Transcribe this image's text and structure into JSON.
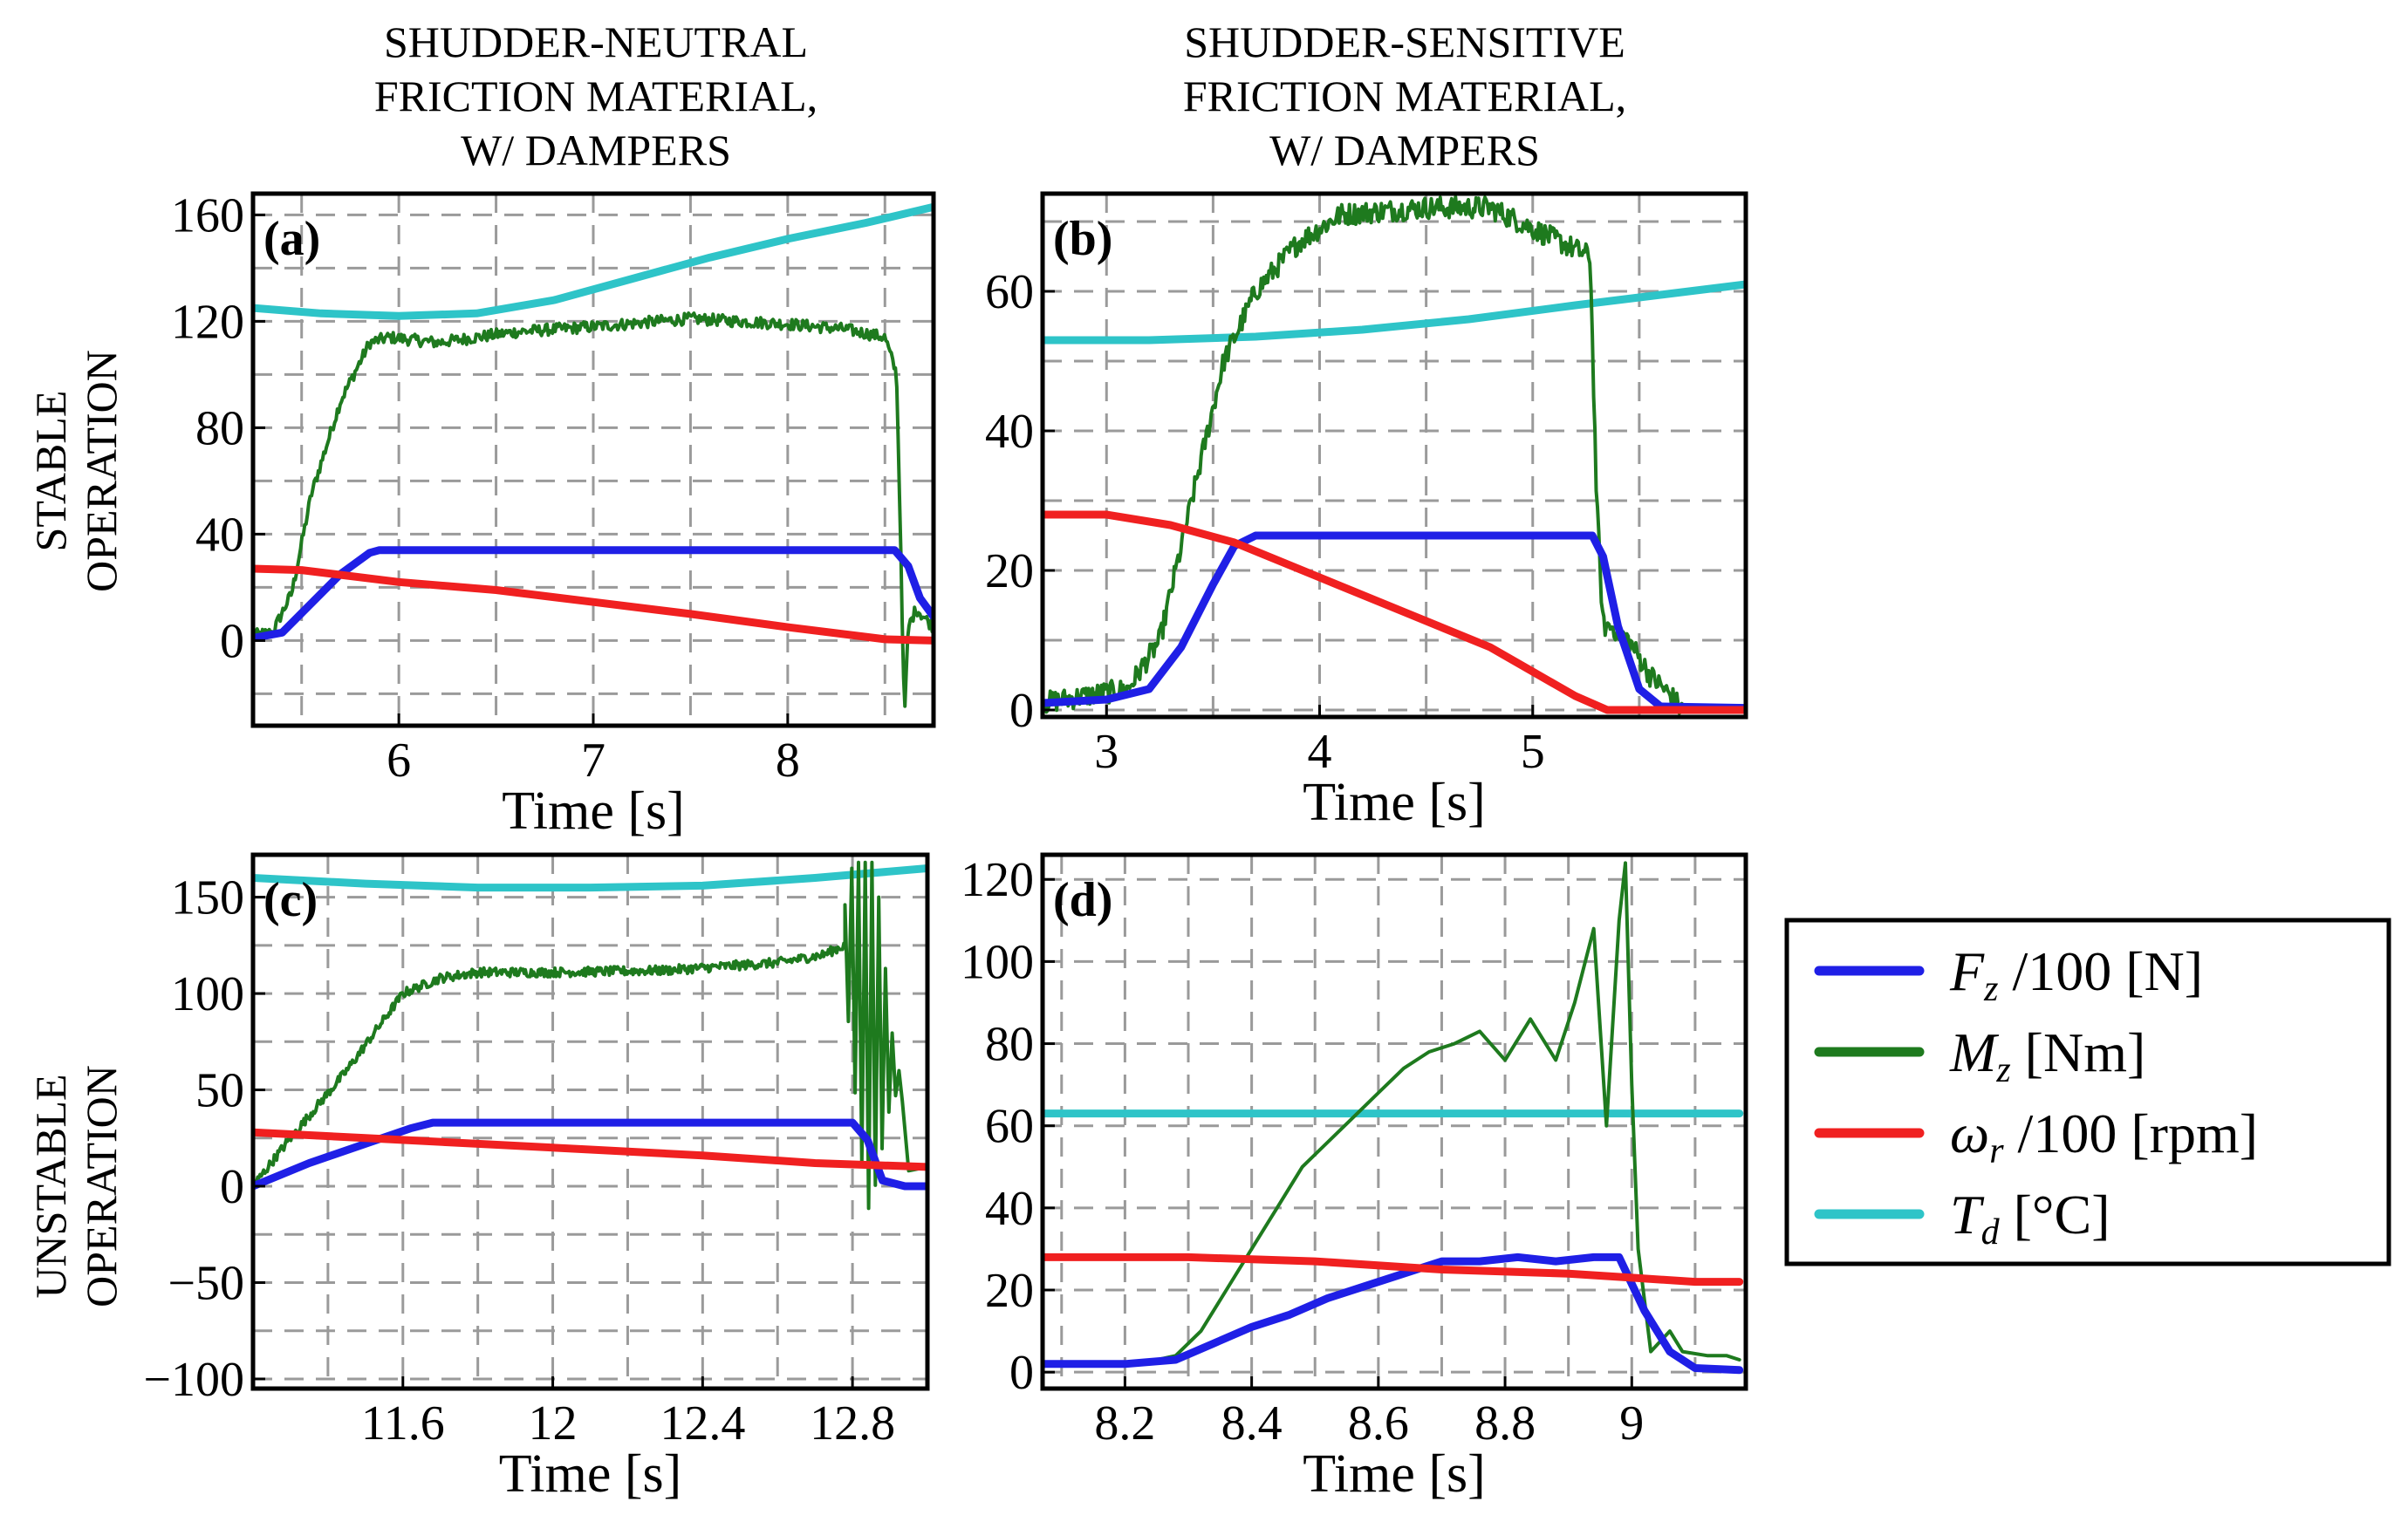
{
  "column_titles": [
    [
      "SHUDDER-NEUTRAL",
      "FRICTION MATERIAL,",
      "W/ DAMPERS"
    ],
    [
      "SHUDDER-SENSITIVE",
      "FRICTION MATERIAL,",
      "W/ DAMPERS"
    ]
  ],
  "row_labels": [
    [
      "STABLE",
      "OPERATION"
    ],
    [
      "UNSTABLE",
      "OPERATION"
    ]
  ],
  "legend": {
    "entries": [
      {
        "symbol": "F",
        "sub": "z",
        "unit": "/100 [N]",
        "color": "#1f1fe6"
      },
      {
        "symbol": "M",
        "sub": "z",
        "unit": " [Nm]",
        "color": "#1e7a1e"
      },
      {
        "symbol": "ω",
        "sub": "r",
        "unit": "/100 [rpm]",
        "color": "#f02020"
      },
      {
        "symbol": "T",
        "sub": "d",
        "unit": " [°C]",
        "color": "#2ec4c8"
      }
    ]
  },
  "chart_data": [
    {
      "type": "line",
      "panel_label": "(a)",
      "xlabel": "Time [s]",
      "ylabel": "",
      "xlim": [
        5.25,
        8.75
      ],
      "ylim": [
        -32,
        168
      ],
      "xticks": [
        6,
        7,
        8
      ],
      "xtick_labels": [
        "6",
        "7",
        "8"
      ],
      "yticks": [
        0,
        40,
        80,
        120,
        160
      ],
      "ytick_labels": [
        "0",
        "40",
        "80",
        "120",
        "160"
      ],
      "xgrid": [
        5.5,
        6,
        6.5,
        7,
        7.5,
        8,
        8.5
      ],
      "ygrid": [
        -20,
        0,
        20,
        40,
        60,
        80,
        100,
        120,
        140,
        160
      ],
      "series": [
        {
          "name": "Td",
          "color": "#2ec4c8",
          "width": 9,
          "noise": 0,
          "x": [
            5.25,
            5.6,
            6.0,
            6.4,
            6.8,
            7.2,
            7.6,
            8.0,
            8.4,
            8.75
          ],
          "y": [
            125,
            123,
            122,
            123,
            128,
            136,
            144,
            151,
            157,
            163
          ]
        },
        {
          "name": "Mz",
          "color": "#1e7a1e",
          "width": 4,
          "noise": 2.2,
          "x": [
            5.25,
            5.35,
            5.45,
            5.55,
            5.7,
            5.85,
            5.95,
            6.2,
            6.6,
            7.0,
            7.5,
            8.0,
            8.3,
            8.5,
            8.56,
            8.58,
            8.6,
            8.62,
            8.66,
            8.75
          ],
          "y": [
            2,
            3,
            18,
            55,
            90,
            112,
            114,
            112,
            116,
            118,
            121,
            119,
            117,
            114,
            100,
            40,
            -30,
            5,
            12,
            5
          ]
        },
        {
          "name": "Fz",
          "color": "#1f1fe6",
          "width": 9,
          "noise": 0,
          "x": [
            5.25,
            5.4,
            5.55,
            5.7,
            5.85,
            5.9,
            8.55,
            8.62,
            8.68,
            8.75
          ],
          "y": [
            1,
            3,
            14,
            25,
            33,
            34,
            34,
            28,
            16,
            9
          ]
        },
        {
          "name": "wr",
          "color": "#f02020",
          "width": 9,
          "noise": 0,
          "x": [
            5.25,
            5.5,
            6.0,
            6.5,
            7.0,
            7.5,
            8.0,
            8.5,
            8.75
          ],
          "y": [
            27,
            26.5,
            22,
            19,
            14.5,
            10,
            5,
            0.5,
            0
          ]
        }
      ]
    },
    {
      "type": "line",
      "panel_label": "(b)",
      "xlabel": "Time [s]",
      "ylabel": "",
      "xlim": [
        2.7,
        6.0
      ],
      "ylim": [
        -1,
        74
      ],
      "xticks": [
        3,
        4,
        5
      ],
      "xtick_labels": [
        "3",
        "4",
        "5"
      ],
      "yticks": [
        0,
        20,
        40,
        60
      ],
      "ytick_labels": [
        "0",
        "20",
        "40",
        "60"
      ],
      "xgrid": [
        3,
        3.5,
        4,
        4.5,
        5,
        5.5
      ],
      "ygrid": [
        0,
        10,
        20,
        30,
        40,
        50,
        60,
        70
      ],
      "series": [
        {
          "name": "Td",
          "color": "#2ec4c8",
          "width": 9,
          "noise": 0,
          "x": [
            2.7,
            3.2,
            3.7,
            4.2,
            4.7,
            5.2,
            5.6,
            6.0
          ],
          "y": [
            53,
            53,
            53.5,
            54.5,
            56,
            58,
            59.5,
            61
          ]
        },
        {
          "name": "Mz",
          "color": "#1e7a1e",
          "width": 4,
          "noise": 1.6,
          "x": [
            2.7,
            2.9,
            3.1,
            3.25,
            3.4,
            3.55,
            3.7,
            3.9,
            4.1,
            4.5,
            4.8,
            5.0,
            5.2,
            5.27,
            5.3,
            5.33,
            5.37,
            5.45,
            5.55,
            5.65,
            5.7
          ],
          "y": [
            1,
            2,
            3,
            10,
            30,
            50,
            60,
            67,
            71,
            72,
            72,
            69,
            66,
            65,
            30,
            12,
            12,
            10,
            5,
            2,
            0
          ]
        },
        {
          "name": "Fz",
          "color": "#1f1fe6",
          "width": 9,
          "noise": 0,
          "x": [
            2.7,
            3.0,
            3.2,
            3.35,
            3.5,
            3.6,
            3.7,
            5.28,
            5.33,
            5.4,
            5.5,
            5.6,
            6.0
          ],
          "y": [
            1,
            1.5,
            3,
            9,
            18,
            23.5,
            25,
            25,
            22,
            12,
            3,
            0.5,
            0.3
          ]
        },
        {
          "name": "wr",
          "color": "#f02020",
          "width": 9,
          "noise": 0,
          "x": [
            2.7,
            3.0,
            3.3,
            3.6,
            4.0,
            4.4,
            4.8,
            5.2,
            5.35,
            5.7,
            6.0
          ],
          "y": [
            28,
            28,
            26.5,
            24,
            19,
            14,
            9,
            2,
            0,
            0,
            0
          ]
        }
      ]
    },
    {
      "type": "line",
      "panel_label": "(c)",
      "xlabel": "Time [s]",
      "ylabel": "",
      "xlim": [
        11.2,
        13.0
      ],
      "ylim": [
        -105,
        172
      ],
      "xticks": [
        11.6,
        12,
        12.4,
        12.8
      ],
      "xtick_labels": [
        "11.6",
        "12",
        "12.4",
        "12.8"
      ],
      "yticks": [
        -100,
        -50,
        0,
        50,
        100,
        150
      ],
      "ytick_labels": [
        "−100",
        "−50",
        "0",
        "50",
        "100",
        "150"
      ],
      "xgrid": [
        11.2,
        11.4,
        11.6,
        11.8,
        12.0,
        12.2,
        12.4,
        12.6,
        12.8
      ],
      "ygrid": [
        -100,
        -75,
        -50,
        -25,
        0,
        25,
        50,
        75,
        100,
        125,
        150
      ],
      "series": [
        {
          "name": "Td",
          "color": "#2ec4c8",
          "width": 9,
          "noise": 0,
          "x": [
            11.2,
            11.5,
            11.8,
            12.1,
            12.4,
            12.7,
            13.0
          ],
          "y": [
            160,
            157,
            155,
            155,
            156,
            160,
            165
          ]
        },
        {
          "name": "Mz",
          "color": "#1e7a1e",
          "width": 4,
          "noise": 2.4,
          "x": [
            11.2,
            11.3,
            11.45,
            11.6,
            11.7,
            11.8,
            12.0,
            12.3,
            12.6,
            12.72,
            12.78
          ],
          "y": [
            0,
            25,
            60,
            100,
            108,
            111,
            111,
            112,
            116,
            120,
            125
          ]
        },
        {
          "name": "Fz",
          "color": "#1f1fe6",
          "width": 9,
          "noise": 0,
          "x": [
            11.2,
            11.35,
            11.5,
            11.62,
            11.68,
            12.8,
            12.84,
            12.88,
            12.94,
            13.0
          ],
          "y": [
            0,
            12,
            22,
            30,
            33,
            33,
            24,
            3,
            0,
            0
          ]
        },
        {
          "name": "wr",
          "color": "#f02020",
          "width": 9,
          "noise": 0,
          "x": [
            11.2,
            11.5,
            11.8,
            12.1,
            12.4,
            12.7,
            13.0
          ],
          "y": [
            28,
            25,
            22,
            19,
            16,
            12,
            10
          ]
        }
      ]
    },
    {
      "type": "line",
      "panel_label": "(d)",
      "xlabel": "Time [s]",
      "ylabel": "",
      "xlim": [
        8.07,
        9.18
      ],
      "ylim": [
        -4,
        126
      ],
      "xticks": [
        8.2,
        8.4,
        8.6,
        8.8,
        9
      ],
      "xtick_labels": [
        "8.2",
        "8.4",
        "8.6",
        "8.8",
        "9"
      ],
      "yticks": [
        0,
        20,
        40,
        60,
        80,
        100,
        120
      ],
      "ytick_labels": [
        "0",
        "20",
        "40",
        "60",
        "80",
        "100",
        "120"
      ],
      "xgrid": [
        8.1,
        8.2,
        8.3,
        8.4,
        8.5,
        8.6,
        8.7,
        8.8,
        8.9,
        9.0,
        9.1
      ],
      "ygrid": [
        0,
        20,
        40,
        60,
        80,
        100,
        120
      ],
      "series": [
        {
          "name": "Td",
          "color": "#2ec4c8",
          "width": 9,
          "noise": 0,
          "x": [
            8.07,
            9.17
          ],
          "y": [
            63,
            63
          ]
        },
        {
          "name": "Mz",
          "color": "#1e7a1e",
          "width": 4,
          "noise": 0,
          "x": [
            8.07,
            8.15,
            8.22,
            8.28,
            8.32,
            8.36,
            8.4,
            8.44,
            8.48,
            8.52,
            8.56,
            8.6,
            8.64,
            8.68,
            8.72,
            8.76,
            8.8,
            8.84,
            8.88,
            8.91,
            8.94,
            8.96,
            8.98,
            8.99,
            9.0,
            9.01,
            9.03,
            9.06,
            9.08,
            9.12,
            9.15,
            9.17
          ],
          "y": [
            2,
            2,
            2,
            4,
            10,
            20,
            30,
            40,
            50,
            56,
            62,
            68,
            74,
            78,
            80,
            83,
            76,
            86,
            76,
            90,
            108,
            60,
            110,
            124,
            70,
            30,
            5,
            10,
            5,
            4,
            4,
            3
          ]
        },
        {
          "name": "Fz",
          "color": "#1f1fe6",
          "width": 9,
          "noise": 0,
          "x": [
            8.07,
            8.2,
            8.28,
            8.34,
            8.4,
            8.46,
            8.52,
            8.58,
            8.64,
            8.7,
            8.76,
            8.82,
            8.88,
            8.94,
            8.98,
            9.02,
            9.06,
            9.1,
            9.17
          ],
          "y": [
            2,
            2,
            3,
            7,
            11,
            14,
            18,
            21,
            24,
            27,
            27,
            28,
            27,
            28,
            28,
            15,
            5,
            1,
            0.5
          ]
        },
        {
          "name": "wr",
          "color": "#f02020",
          "width": 9,
          "noise": 0,
          "x": [
            8.07,
            8.3,
            8.5,
            8.7,
            8.9,
            9.0,
            9.1,
            9.17
          ],
          "y": [
            28,
            28,
            27,
            25,
            24,
            23,
            22,
            22
          ]
        }
      ]
    }
  ]
}
